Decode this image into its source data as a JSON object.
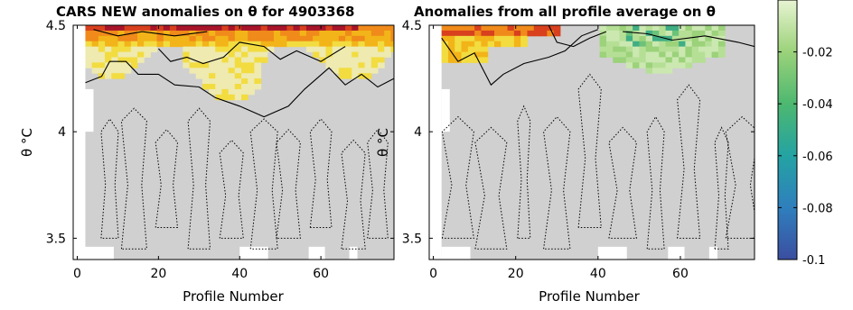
{
  "chart_data": [
    {
      "type": "heatmap",
      "title": "CARS NEW anomalies on θ for 4903368",
      "xlabel": "Profile Number",
      "ylabel": "θ °C",
      "xlim": [
        -1,
        78
      ],
      "ylim": [
        3.4,
        4.5
      ],
      "xticks": [
        0,
        20,
        40,
        60
      ],
      "yticks": [
        3.5,
        4,
        4.5
      ],
      "grid": false,
      "overlay": "black contours: solid = 0 line, dotted = negative levels",
      "hot_region": {
        "theta_min": 4.2,
        "theta_max": 4.5,
        "peak_theta": 4.5,
        "peak_colour": "dark red"
      }
    },
    {
      "type": "heatmap",
      "title": "Anomalies from all profile average on θ",
      "xlabel": "Profile Number",
      "ylabel": "θ °C",
      "xlim": [
        -1,
        78
      ],
      "ylim": [
        3.4,
        4.5
      ],
      "xticks": [
        0,
        20,
        40,
        60
      ],
      "yticks": [
        3.5,
        4,
        4.5
      ],
      "grid": false,
      "overlay": "black contours: solid = 0 line, dotted = negative levels",
      "hot_region": {
        "profile_min": 2,
        "profile_max": 30,
        "theta_min": 4.3
      },
      "cool_region": {
        "profile_min": 42,
        "profile_max": 68,
        "theta_min": 4.2,
        "min_value": -0.07
      }
    }
  ],
  "colorbar": {
    "ticks": [
      "-0.02",
      "-0.04",
      "-0.06",
      "-0.08",
      "-0.1"
    ],
    "tick_values": [
      -0.02,
      -0.04,
      -0.06,
      -0.08,
      -0.1
    ],
    "range": [
      -0.1,
      0.0
    ],
    "colors": [
      "#3b4ea0",
      "#2f7fbd",
      "#24a3a3",
      "#4db870",
      "#9bd27a",
      "#d6ecb6"
    ]
  },
  "colors": {
    "neutral": "#d0d0d0",
    "dark_red": "#a8142a",
    "red": "#d8401e",
    "orange": "#f08a1a",
    "amber": "#f2b418",
    "yellow": "#f2dc40",
    "pale_yellow": "#eeeab0"
  }
}
